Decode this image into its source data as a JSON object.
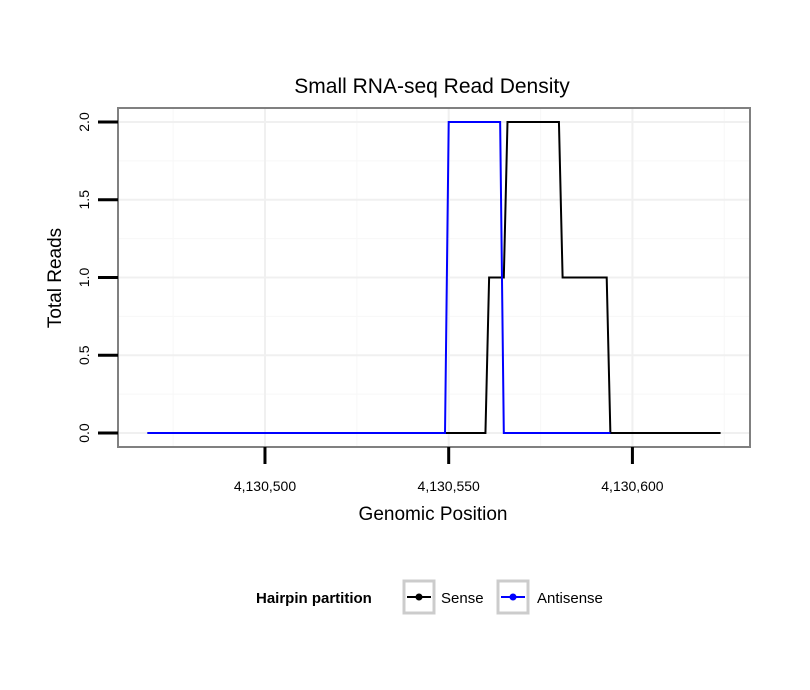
{
  "chart_data": {
    "type": "line",
    "title": "Small RNA-seq Read Density",
    "xlabel": "Genomic Position",
    "ylabel": "Total Reads",
    "xlim": [
      4130460,
      4130632
    ],
    "ylim": [
      -0.09,
      2.09
    ],
    "x_ticks": [
      4130500,
      4130550,
      4130600
    ],
    "x_tick_labels": [
      "4,130,500",
      "4,130,550",
      "4,130,600"
    ],
    "y_ticks": [
      0,
      0.5,
      1,
      1.5,
      2
    ],
    "y_tick_labels": [
      "0.0",
      "0.5",
      "1.0",
      "1.5",
      "2.0"
    ],
    "grid": true,
    "legend": {
      "title": "Hairpin partition",
      "position": "bottom"
    },
    "series": [
      {
        "name": "Sense",
        "color": "#000000",
        "x": [
          4130468,
          4130560,
          4130561,
          4130565,
          4130566,
          4130580,
          4130581,
          4130593,
          4130594,
          4130624
        ],
        "y": [
          0,
          0,
          1,
          1,
          2,
          2,
          1,
          1,
          0,
          0
        ]
      },
      {
        "name": "Antisense",
        "color": "#0000ff",
        "x": [
          4130468,
          4130549,
          4130550,
          4130564,
          4130565,
          4130594
        ],
        "y": [
          0,
          0,
          2,
          2,
          0,
          0
        ]
      }
    ]
  }
}
